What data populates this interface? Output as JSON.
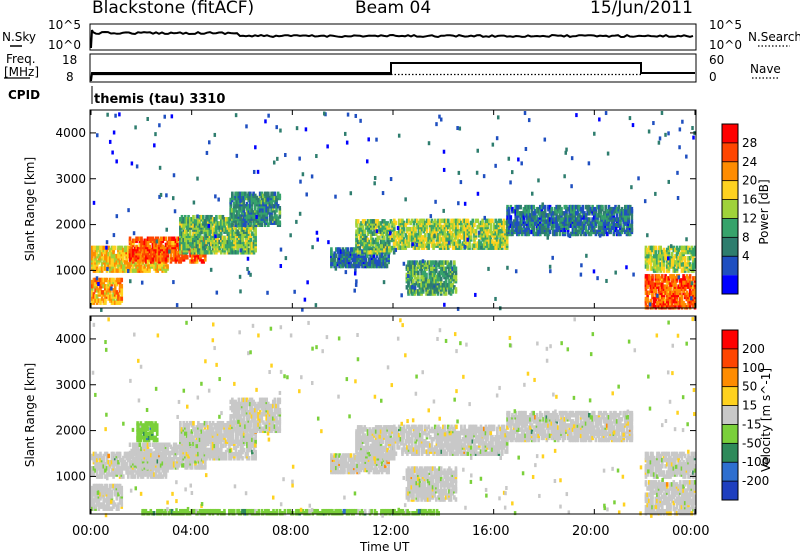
{
  "header": {
    "station": "Blackstone (fitACF)",
    "beam": "Beam 04",
    "date": "15/Jun/2011"
  },
  "noise_panel": {
    "left_label": "N.Sky",
    "right_label": "N.Search",
    "left_ticks": [
      "10^5",
      "10^0"
    ],
    "right_ticks": [
      "10^5",
      "10^0"
    ]
  },
  "freq_panel": {
    "left_label_line1": "Freq.",
    "left_label_line2": "[MHz]",
    "right_label": "Nave",
    "left_ticks": [
      "18",
      "8"
    ],
    "right_ticks": [
      "60",
      "0"
    ]
  },
  "cpid": {
    "label": "CPID",
    "text": "themis (tau) 3310"
  },
  "time_axis": {
    "label": "Time UT",
    "ticks": [
      "00:00",
      "04:00",
      "08:00",
      "12:00",
      "16:00",
      "20:00",
      "00:00"
    ]
  },
  "power_colorbar": {
    "label": "Power [dB]",
    "ticks": [
      "28",
      "24",
      "20",
      "16",
      "12",
      "8",
      "4"
    ],
    "colors": [
      "#0000ff",
      "#1f4fc0",
      "#2e7d6e",
      "#36a36b",
      "#9fd23a",
      "#ffd21f",
      "#ff8c00",
      "#ff4500",
      "#ff0000"
    ]
  },
  "velocity_colorbar": {
    "label": "Velocity [m s^-1]",
    "ticks": [
      "200",
      "100",
      "50",
      "15",
      "-15",
      "-50",
      "-100",
      "-200"
    ],
    "colors": [
      "#1f3fbf",
      "#2e6fd0",
      "#2e8a5a",
      "#7ad03a",
      "#c8c8c8",
      "#ffd21f",
      "#ff8c00",
      "#ff4500",
      "#ff0000"
    ]
  },
  "chart_data": [
    {
      "type": "heatmap",
      "title": "Power",
      "ylabel": "Slant Range [km]",
      "xlabel": "Time UT",
      "x": [
        "00:00",
        "04:00",
        "08:00",
        "12:00",
        "16:00",
        "20:00",
        "00:00"
      ],
      "yticks": [
        "1000",
        "2000",
        "3000",
        "4000"
      ],
      "xlim_hours": [
        0,
        24
      ],
      "ylim_km": [
        180,
        4500
      ],
      "colorbar_label": "Power [dB]",
      "clim_db": [
        0,
        32
      ],
      "bands": [
        {
          "t0": 0.0,
          "t1": 1.2,
          "r0": 300,
          "r1": 800,
          "value": 22
        },
        {
          "t0": 0.0,
          "t1": 3.0,
          "r0": 1000,
          "r1": 1500,
          "value": 20
        },
        {
          "t0": 1.5,
          "t1": 4.5,
          "r0": 1200,
          "r1": 1700,
          "value": 26
        },
        {
          "t0": 3.5,
          "t1": 6.5,
          "r0": 1400,
          "r1": 2200,
          "value": 14
        },
        {
          "t0": 5.5,
          "t1": 7.5,
          "r0": 2000,
          "r1": 2700,
          "value": 10
        },
        {
          "t0": 9.5,
          "t1": 11.8,
          "r0": 1100,
          "r1": 1500,
          "value": 8
        },
        {
          "t0": 10.5,
          "t1": 12.0,
          "r0": 1400,
          "r1": 2100,
          "value": 14
        },
        {
          "t0": 12.0,
          "t1": 16.5,
          "r0": 1500,
          "r1": 2100,
          "value": 16
        },
        {
          "t0": 12.5,
          "t1": 14.5,
          "r0": 500,
          "r1": 1200,
          "value": 12
        },
        {
          "t0": 16.5,
          "t1": 21.5,
          "r0": 1800,
          "r1": 2400,
          "value": 8
        },
        {
          "t0": 22.0,
          "t1": 24.0,
          "r0": 1000,
          "r1": 1500,
          "value": 16
        },
        {
          "t0": 22.0,
          "t1": 24.0,
          "r0": 200,
          "r1": 900,
          "value": 26
        }
      ]
    },
    {
      "type": "heatmap",
      "title": "Velocity",
      "ylabel": "Slant Range [km]",
      "xlabel": "Time UT",
      "x": [
        "00:00",
        "04:00",
        "08:00",
        "12:00",
        "16:00",
        "20:00",
        "00:00"
      ],
      "yticks": [
        "1000",
        "2000",
        "3000",
        "4000"
      ],
      "xlim_hours": [
        0,
        24
      ],
      "ylim_km": [
        180,
        4500
      ],
      "colorbar_label": "Velocity [m s^-1]",
      "clim_ms": [
        -200,
        200
      ],
      "bands": [
        {
          "t0": 0.0,
          "t1": 1.2,
          "r0": 300,
          "r1": 800,
          "value": 0
        },
        {
          "t0": 0.0,
          "t1": 3.0,
          "r0": 1000,
          "r1": 1500,
          "value": 0
        },
        {
          "t0": 1.5,
          "t1": 4.5,
          "r0": 1200,
          "r1": 1700,
          "value": 0
        },
        {
          "t0": 1.8,
          "t1": 2.6,
          "r0": 1800,
          "r1": 2200,
          "value": -60
        },
        {
          "t0": 3.5,
          "t1": 6.5,
          "r0": 1400,
          "r1": 2200,
          "value": 0
        },
        {
          "t0": 5.5,
          "t1": 7.5,
          "r0": 2000,
          "r1": 2700,
          "value": 0
        },
        {
          "t0": 9.5,
          "t1": 11.8,
          "r0": 1100,
          "r1": 1500,
          "value": 20
        },
        {
          "t0": 10.5,
          "t1": 12.0,
          "r0": 1400,
          "r1": 2100,
          "value": 0
        },
        {
          "t0": 12.0,
          "t1": 16.5,
          "r0": 1500,
          "r1": 2100,
          "value": 0
        },
        {
          "t0": 12.5,
          "t1": 14.5,
          "r0": 500,
          "r1": 1200,
          "value": 0
        },
        {
          "t0": 16.5,
          "t1": 21.5,
          "r0": 1800,
          "r1": 2400,
          "value": 0
        },
        {
          "t0": 22.0,
          "t1": 24.0,
          "r0": 1000,
          "r1": 1500,
          "value": 0
        },
        {
          "t0": 22.0,
          "t1": 24.0,
          "r0": 200,
          "r1": 900,
          "value": 0
        },
        {
          "t0": 2.0,
          "t1": 14.0,
          "r0": 200,
          "r1": 260,
          "value": -60
        }
      ]
    }
  ]
}
